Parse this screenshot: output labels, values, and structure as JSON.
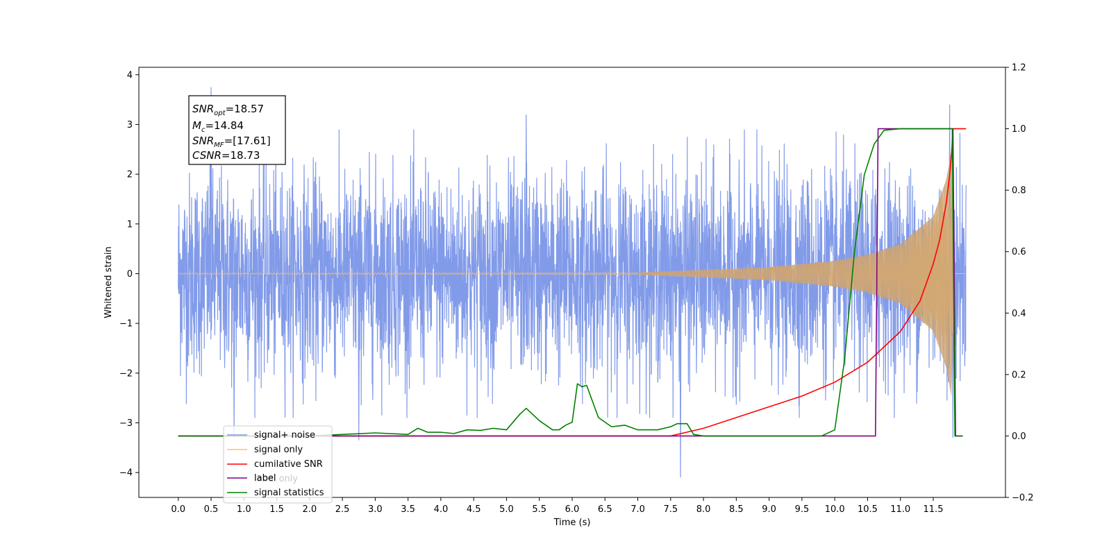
{
  "chart_data": {
    "type": "line",
    "xlabel": "Time (s)",
    "ylabel": "Whitened strain",
    "xlim": [
      -0.6,
      12.6
    ],
    "ylim": [
      -4.5,
      4.15
    ],
    "y2lim": [
      -0.2,
      1.2
    ],
    "x_ticks": [
      "0.0",
      "0.5",
      "1.0",
      "1.5",
      "2.0",
      "2.5",
      "3.0",
      "3.5",
      "4.0",
      "4.5",
      "5.0",
      "5.5",
      "6.0",
      "6.5",
      "7.0",
      "7.5",
      "8.0",
      "8.5",
      "9.0",
      "9.5",
      "10.0",
      "10.5",
      "11.0",
      "11.5"
    ],
    "y_ticks": [
      "4",
      "3",
      "2",
      "1",
      "0",
      "−1",
      "−2",
      "−3",
      "−4"
    ],
    "y2_ticks": [
      "1.2",
      "1.0",
      "0.8",
      "0.6",
      "0.4",
      "0.2",
      "0.0",
      "−0.2"
    ],
    "info_box": {
      "snr_opt": {
        "base": "SNR",
        "sub": "opt",
        "value": "=18.57"
      },
      "mc": {
        "base": "M",
        "sub": "c",
        "value": "=14.84"
      },
      "snr_mf": {
        "base": "SNR",
        "sub": "MF",
        "value": "=[17.61]"
      },
      "csnr": {
        "base": "CSNR",
        "value": "=18.73"
      }
    },
    "legend": {
      "placement": "lower-left",
      "entries": [
        {
          "label": "signal+ noise",
          "color": "#7b96e8"
        },
        {
          "label": "signal only",
          "color": "#fdbf6f"
        },
        {
          "label": "cumilative SNR",
          "color": "#ff0000"
        },
        {
          "label": "label",
          "color": "#800080"
        },
        {
          "label": "signal statistics",
          "color": "#008000"
        }
      ],
      "hidden_label": "label only"
    },
    "series": [
      {
        "name": "signal+ noise",
        "axis": "left",
        "color": "#7b96e8",
        "description": "whitened strain noise, approx ±2.5 with spikes to ±4",
        "x_range": [
          0.0,
          12.0
        ],
        "peaks": [
          {
            "x": 0.5,
            "y": 3.75
          },
          {
            "x": 0.85,
            "y": -3.3
          },
          {
            "x": 2.75,
            "y": -3.35
          },
          {
            "x": 5.3,
            "y": 3.2
          },
          {
            "x": 7.65,
            "y": -4.1
          },
          {
            "x": 11.75,
            "y": 3.4
          },
          {
            "x": 11.8,
            "y": -3.3
          }
        ]
      },
      {
        "name": "signal only",
        "axis": "left",
        "color": "#fdbf6f",
        "description": "chirp, amplitude grows until merger near 11.8 s",
        "amplitude": [
          {
            "x": 0.0,
            "y": 0.01
          },
          {
            "x": 7.0,
            "y": 0.02
          },
          {
            "x": 8.0,
            "y": 0.07
          },
          {
            "x": 9.0,
            "y": 0.13
          },
          {
            "x": 10.0,
            "y": 0.26
          },
          {
            "x": 10.5,
            "y": 0.38
          },
          {
            "x": 11.0,
            "y": 0.6
          },
          {
            "x": 11.5,
            "y": 1.15
          },
          {
            "x": 11.7,
            "y": 1.9
          },
          {
            "x": 11.78,
            "y": 2.5
          },
          {
            "x": 11.82,
            "y": 0.0
          },
          {
            "x": 12.0,
            "y": 0.0
          }
        ]
      },
      {
        "name": "cumilative SNR",
        "axis": "right",
        "color": "#ff0000",
        "x": [
          0.0,
          7.5,
          8.0,
          8.5,
          9.0,
          9.5,
          10.0,
          10.5,
          11.0,
          11.3,
          11.5,
          11.6,
          11.7,
          11.75,
          11.78,
          11.8,
          11.85,
          12.0
        ],
        "y": [
          0.0,
          0.0,
          0.025,
          0.06,
          0.095,
          0.13,
          0.175,
          0.24,
          0.34,
          0.44,
          0.56,
          0.64,
          0.76,
          0.85,
          0.92,
          1.0,
          1.0,
          1.0
        ]
      },
      {
        "name": "label",
        "axis": "right",
        "color": "#800080",
        "x": [
          0.0,
          10.62,
          10.66,
          11.8,
          11.84,
          11.95
        ],
        "y": [
          0.0,
          0.0,
          1.0,
          1.0,
          0.0,
          0.0
        ]
      },
      {
        "name": "signal statistics",
        "axis": "right",
        "color": "#008000",
        "x": [
          0.0,
          2.0,
          2.5,
          3.0,
          3.5,
          3.65,
          3.8,
          4.0,
          4.2,
          4.4,
          4.6,
          4.8,
          5.0,
          5.2,
          5.3,
          5.5,
          5.7,
          5.8,
          5.9,
          6.0,
          6.08,
          6.15,
          6.22,
          6.4,
          6.5,
          6.6,
          6.8,
          7.0,
          7.3,
          7.5,
          7.6,
          7.75,
          7.85,
          8.0,
          9.0,
          9.8,
          10.0,
          10.15,
          10.3,
          10.45,
          10.6,
          10.75,
          11.0,
          11.79,
          11.83,
          11.95
        ],
        "y": [
          0.0,
          0.0,
          0.005,
          0.01,
          0.005,
          0.025,
          0.012,
          0.012,
          0.008,
          0.02,
          0.018,
          0.025,
          0.02,
          0.07,
          0.09,
          0.05,
          0.02,
          0.02,
          0.035,
          0.045,
          0.17,
          0.16,
          0.165,
          0.06,
          0.045,
          0.03,
          0.035,
          0.02,
          0.02,
          0.03,
          0.04,
          0.04,
          0.005,
          0.0,
          0.0,
          0.0,
          0.02,
          0.25,
          0.6,
          0.85,
          0.95,
          0.995,
          1.0,
          1.0,
          0.0,
          0.0
        ]
      }
    ]
  }
}
